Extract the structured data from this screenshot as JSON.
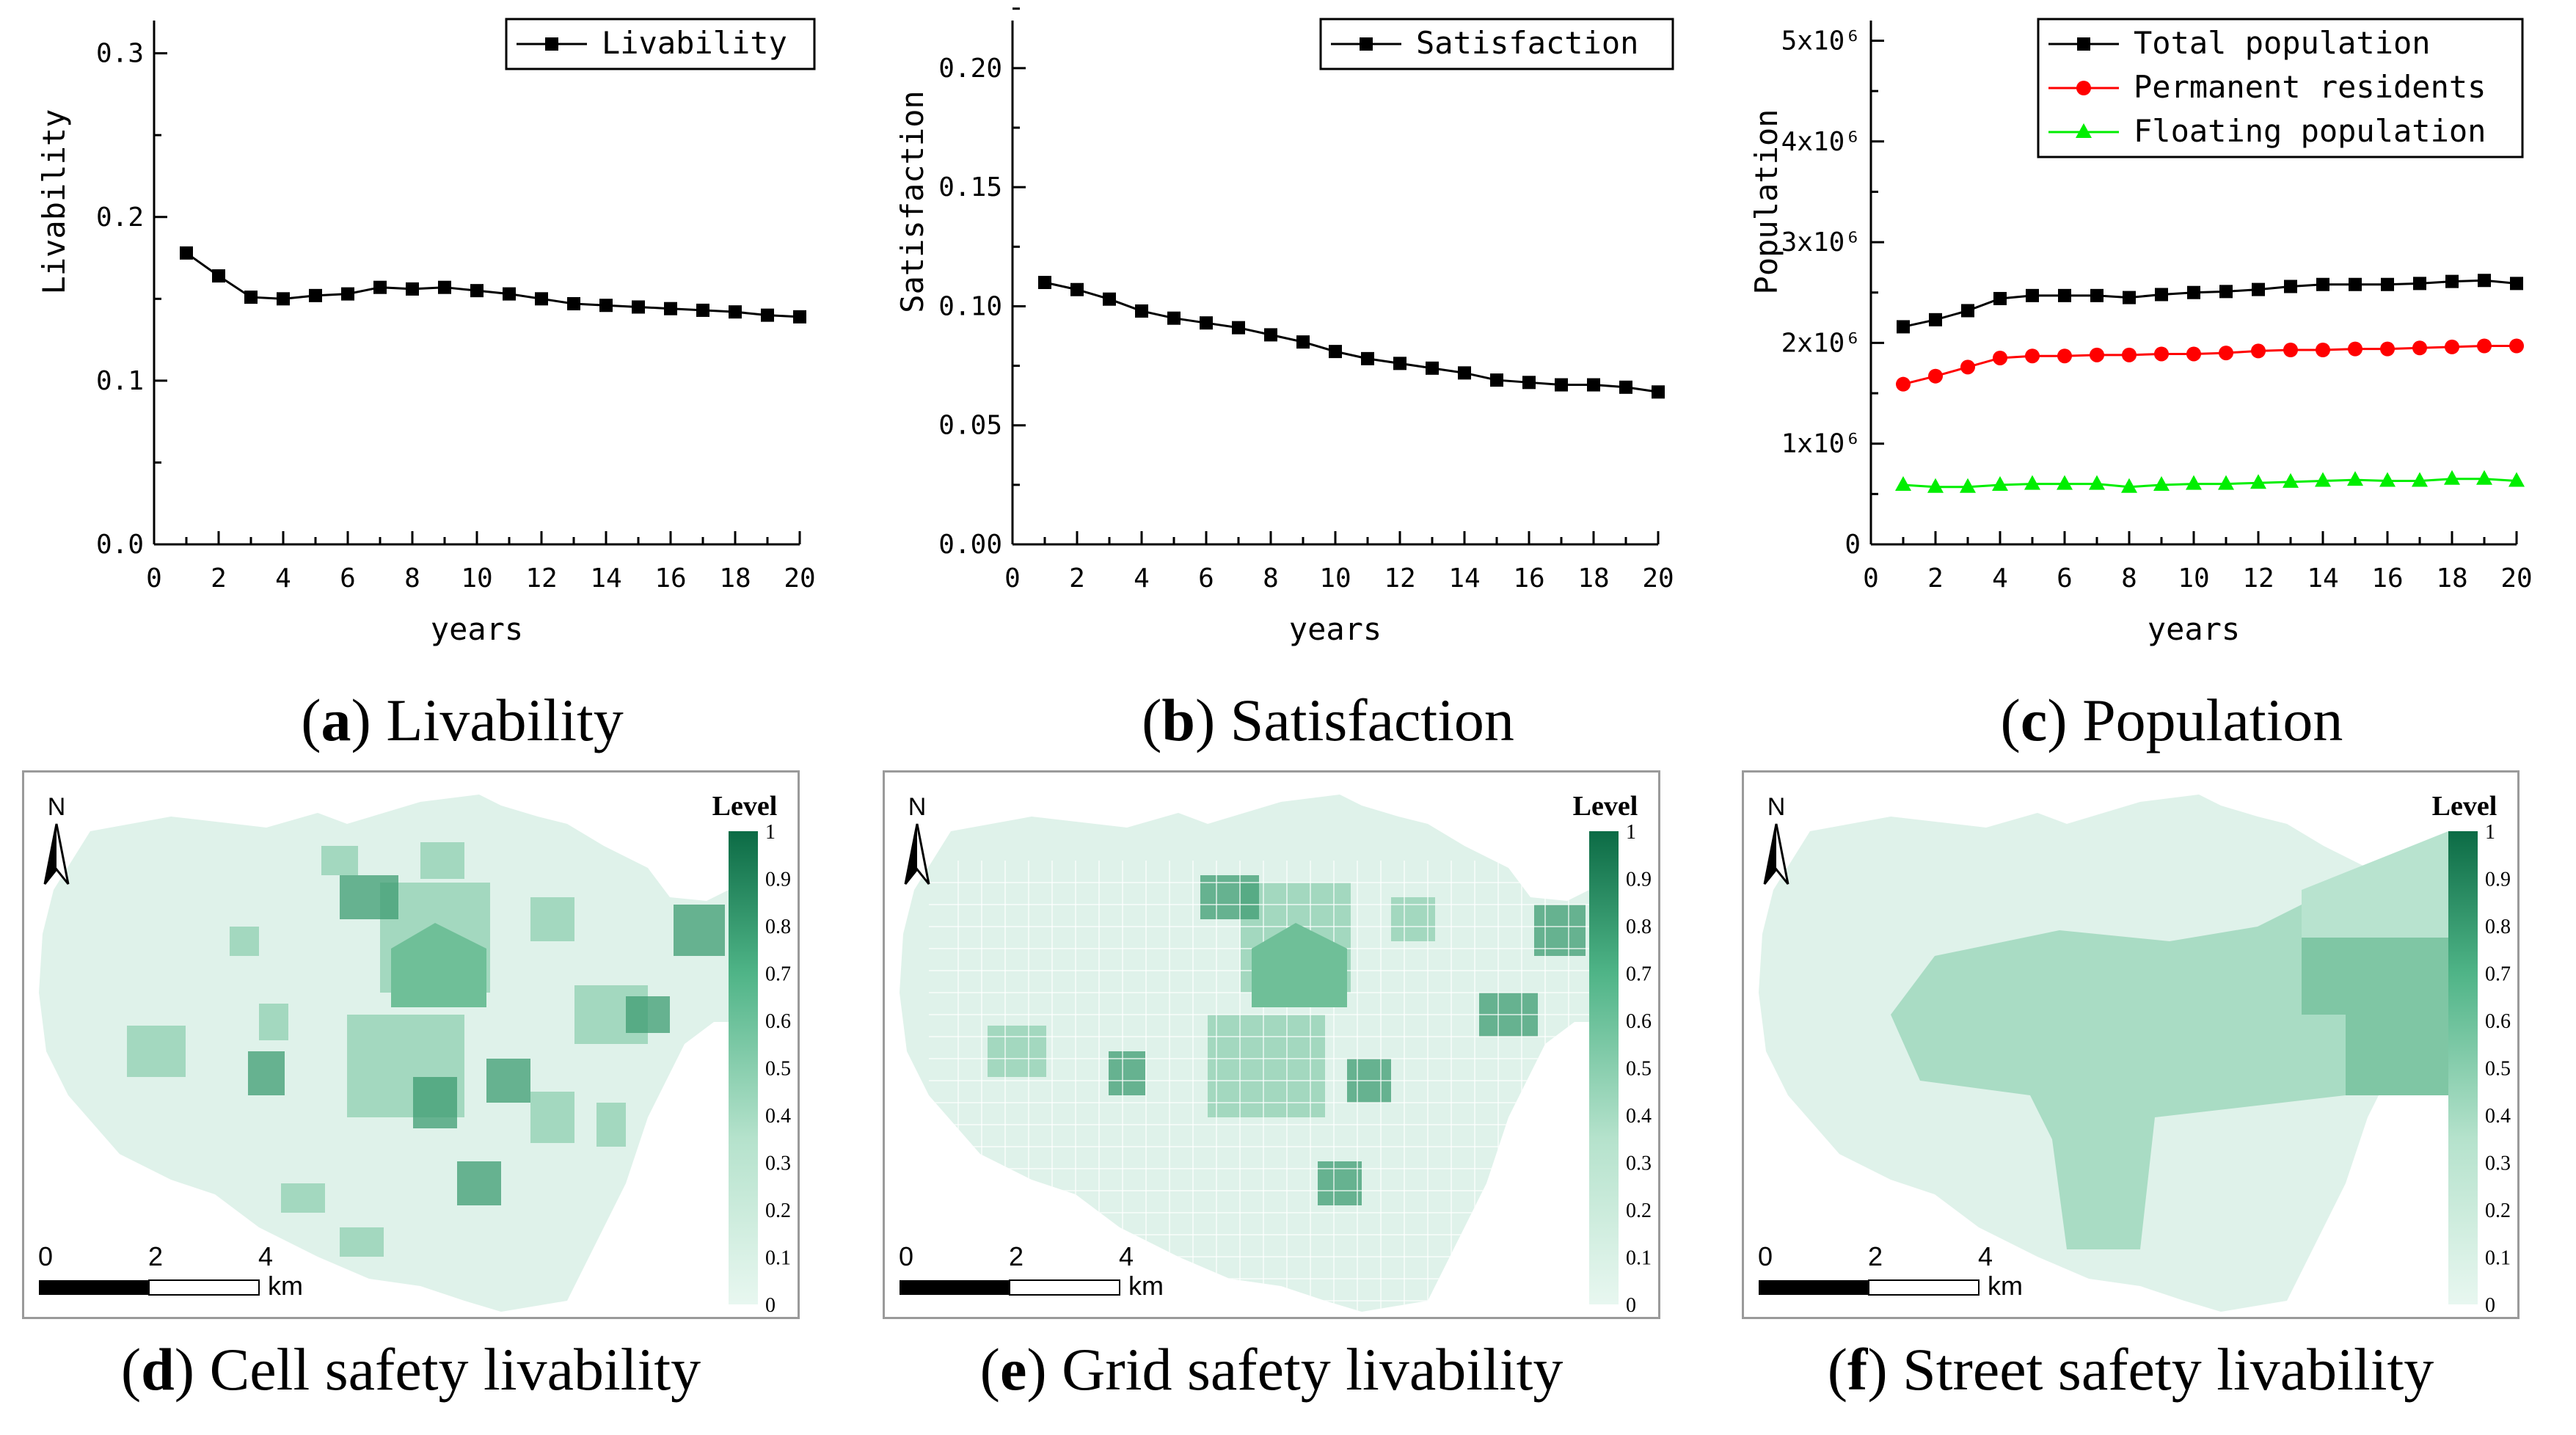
{
  "chart_data": [
    {
      "id": "a",
      "type": "line",
      "xlabel": "years",
      "ylabel": "Livability",
      "xlim": [
        0,
        20
      ],
      "ylim": [
        0,
        0.32
      ],
      "xticks": [
        "0",
        "2",
        "4",
        "6",
        "8",
        "10",
        "12",
        "14",
        "16",
        "18",
        "20"
      ],
      "yticks": [
        "0.0",
        "0.1",
        "0.2",
        "0.3"
      ],
      "legend_position": "top-right",
      "series": [
        {
          "name": "Livability",
          "color": "#000000",
          "marker": "square",
          "x": [
            1,
            2,
            3,
            4,
            5,
            6,
            7,
            8,
            9,
            10,
            11,
            12,
            13,
            14,
            15,
            16,
            17,
            18,
            19,
            20
          ],
          "y": [
            0.178,
            0.164,
            0.151,
            0.15,
            0.152,
            0.153,
            0.157,
            0.156,
            0.157,
            0.155,
            0.153,
            0.15,
            0.147,
            0.146,
            0.145,
            0.144,
            0.143,
            0.142,
            0.14,
            0.139
          ]
        }
      ]
    },
    {
      "id": "b",
      "type": "line",
      "xlabel": "years",
      "ylabel": "Satisfaction",
      "xlim": [
        0,
        20
      ],
      "ylim": [
        0,
        0.22
      ],
      "xticks": [
        "0",
        "2",
        "4",
        "6",
        "8",
        "10",
        "12",
        "14",
        "16",
        "18",
        "20"
      ],
      "yticks": [
        "0.00",
        "0.05",
        "0.10",
        "0.15",
        "0.20"
      ],
      "legend_position": "top-right",
      "series": [
        {
          "name": "Satisfaction",
          "color": "#000000",
          "marker": "square",
          "x": [
            1,
            2,
            3,
            4,
            5,
            6,
            7,
            8,
            9,
            10,
            11,
            12,
            13,
            14,
            15,
            16,
            17,
            18,
            19,
            20
          ],
          "y": [
            0.11,
            0.107,
            0.103,
            0.098,
            0.095,
            0.093,
            0.091,
            0.088,
            0.085,
            0.081,
            0.078,
            0.076,
            0.074,
            0.072,
            0.069,
            0.068,
            0.067,
            0.067,
            0.066,
            0.064
          ]
        }
      ]
    },
    {
      "id": "c",
      "type": "line",
      "xlabel": "years",
      "ylabel": "Population",
      "xlim": [
        0,
        20
      ],
      "ylim": [
        0,
        5200000
      ],
      "xticks": [
        "0",
        "2",
        "4",
        "6",
        "8",
        "10",
        "12",
        "14",
        "16",
        "18",
        "20"
      ],
      "yticks": [
        "0",
        "1x10⁶",
        "2x10⁶",
        "3x10⁶",
        "4x10⁶",
        "5x10⁶"
      ],
      "legend_position": "top-right",
      "series": [
        {
          "name": "Total population",
          "color": "#000000",
          "marker": "square",
          "x": [
            1,
            2,
            3,
            4,
            5,
            6,
            7,
            8,
            9,
            10,
            11,
            12,
            13,
            14,
            15,
            16,
            17,
            18,
            19,
            20
          ],
          "y": [
            2160000,
            2230000,
            2320000,
            2440000,
            2470000,
            2470000,
            2470000,
            2450000,
            2480000,
            2500000,
            2510000,
            2530000,
            2560000,
            2580000,
            2580000,
            2580000,
            2590000,
            2610000,
            2620000,
            2590000
          ]
        },
        {
          "name": "Permanent residents",
          "color": "#ff0000",
          "marker": "circle",
          "x": [
            1,
            2,
            3,
            4,
            5,
            6,
            7,
            8,
            9,
            10,
            11,
            12,
            13,
            14,
            15,
            16,
            17,
            18,
            19,
            20
          ],
          "y": [
            1590000,
            1670000,
            1760000,
            1850000,
            1870000,
            1870000,
            1880000,
            1880000,
            1890000,
            1890000,
            1900000,
            1920000,
            1930000,
            1930000,
            1940000,
            1940000,
            1950000,
            1960000,
            1970000,
            1970000
          ]
        },
        {
          "name": "Floating population",
          "color": "#00ee00",
          "marker": "triangle",
          "x": [
            1,
            2,
            3,
            4,
            5,
            6,
            7,
            8,
            9,
            10,
            11,
            12,
            13,
            14,
            15,
            16,
            17,
            18,
            19,
            20
          ],
          "y": [
            590000,
            570000,
            570000,
            590000,
            600000,
            600000,
            600000,
            570000,
            590000,
            600000,
            600000,
            610000,
            620000,
            630000,
            640000,
            630000,
            630000,
            650000,
            650000,
            630000
          ]
        }
      ]
    }
  ],
  "captions": {
    "a": {
      "letter": "a",
      "text": "Livability"
    },
    "b": {
      "letter": "b",
      "text": "Satisfaction"
    },
    "c": {
      "letter": "c",
      "text": "Population"
    },
    "d": {
      "letter": "d",
      "text": "Cell safety livability"
    },
    "e": {
      "letter": "e",
      "text": "Grid safety livability"
    },
    "f": {
      "letter": "f",
      "text": "Street safety livability"
    }
  },
  "maps": {
    "north_label": "N",
    "legend_title": "Level",
    "legend_ticks": [
      "0",
      "0.1",
      "0.2",
      "0.3",
      "0.4",
      "0.5",
      "0.6",
      "0.7",
      "0.8",
      "0.9",
      "1"
    ],
    "scale_labels": [
      "0",
      "2",
      "4"
    ],
    "scale_unit": "km",
    "colors": {
      "light": "#dff2ea",
      "base": "#c4ead9",
      "mid": "#8fcfb0",
      "dark": "#3e9c72",
      "darkest": "#0c6b45"
    }
  }
}
